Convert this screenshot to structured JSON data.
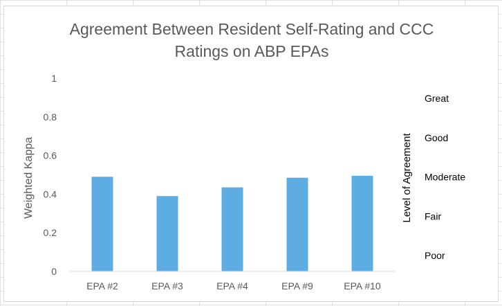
{
  "chart_data": {
    "type": "bar",
    "title_lines": [
      "Agreement Between Resident Self-Rating and CCC",
      "Ratings on ABP EPAs"
    ],
    "ylabel": "Weighted Kappa",
    "xlabel": "",
    "categories": [
      "EPA #2",
      "EPA #3",
      "EPA #4",
      "EPA #9",
      "EPA #10"
    ],
    "values": [
      0.49,
      0.39,
      0.435,
      0.485,
      0.495
    ],
    "ylim": [
      0,
      1
    ],
    "yticks": [
      "0",
      "0.2",
      "0.4",
      "0.6",
      "0.8",
      "1"
    ],
    "yticks_values": [
      0,
      0.2,
      0.4,
      0.6,
      0.8,
      1
    ],
    "bar_color": "#5DADE2",
    "grid": false,
    "legend": "none",
    "secondary_axis": {
      "title": "Level of Agreement",
      "labels": [
        "Poor",
        "Fair",
        "Moderate",
        "Good",
        "Great"
      ]
    }
  }
}
